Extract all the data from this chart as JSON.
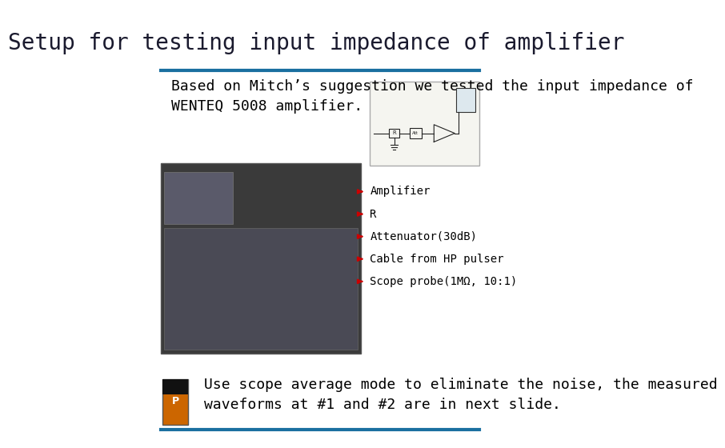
{
  "title": "Setup for testing input impedance of amplifier",
  "title_color": "#1a1a2e",
  "title_fontsize": 20,
  "body_text1": "Based on Mitch’s suggestion we tested the input impedance of\nWENTEQ 5008 amplifier.",
  "body_text2": "Use scope average mode to eliminate the noise, the measured\nwaveforms at #1 and #2 are in next slide.",
  "body_fontsize": 13,
  "bg_color": "#ffffff",
  "line_color": "#1a6fa0",
  "line_thickness": 3,
  "annotation_lines": [
    "Amplifier",
    "R",
    "Attenuator(30dB)",
    "Cable from HP pulser",
    "Scope probe(1MΩ, 10:1)"
  ],
  "annotation_color": "#000000",
  "arrow_color": "#cc0000",
  "annotation_fontsize": 10,
  "font_family": "monospace"
}
